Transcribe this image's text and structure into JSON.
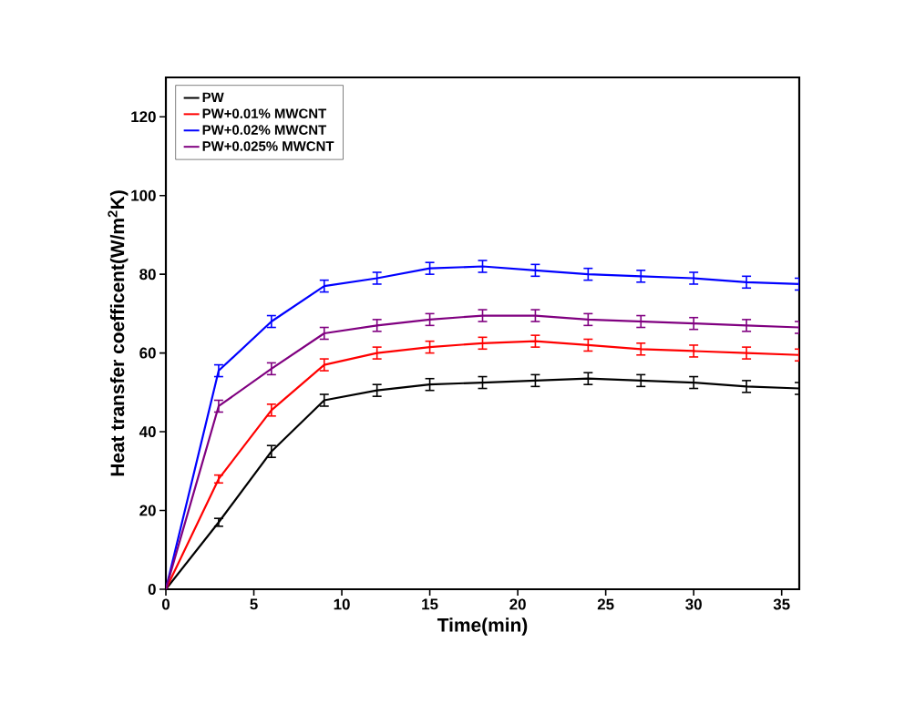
{
  "chart_data": {
    "type": "line",
    "xlabel": "Time(min)",
    "ylabel": "Heat transfer coefficent(W/m$^{2}$K)",
    "x": [
      0,
      3,
      6,
      9,
      12,
      15,
      18,
      21,
      24,
      27,
      30,
      33,
      36
    ],
    "series": [
      {
        "name": "PW",
        "color": "#000000",
        "values": [
          0,
          17,
          35,
          48,
          50.5,
          52,
          52.5,
          53,
          53.5,
          53,
          52.5,
          51.5,
          51
        ],
        "errors": [
          null,
          1,
          1.5,
          1.5,
          1.5,
          1.5,
          1.5,
          1.5,
          1.5,
          1.5,
          1.5,
          1.5,
          1.5
        ]
      },
      {
        "name": "PW+0.01% MWCNT",
        "color": "#ff0000",
        "values": [
          0,
          28,
          45.5,
          57,
          60,
          61.5,
          62.5,
          63,
          62,
          61,
          60.5,
          60,
          59.5
        ],
        "errors": [
          null,
          1,
          1.5,
          1.5,
          1.5,
          1.5,
          1.5,
          1.5,
          1.5,
          1.5,
          1.5,
          1.5,
          1.5
        ]
      },
      {
        "name": "PW+0.02% MWCNT",
        "color": "#0000ff",
        "values": [
          0,
          55.5,
          68,
          77,
          79,
          81.5,
          82,
          81,
          80,
          79.5,
          79,
          78,
          77.5
        ],
        "errors": [
          null,
          1.5,
          1.5,
          1.5,
          1.5,
          1.5,
          1.5,
          1.5,
          1.5,
          1.5,
          1.5,
          1.5,
          1.5
        ]
      },
      {
        "name": "PW+0.025% MWCNT",
        "color": "#800080",
        "values": [
          0,
          46.5,
          56,
          65,
          67,
          68.5,
          69.5,
          69.5,
          68.5,
          68,
          67.5,
          67,
          66.5
        ],
        "errors": [
          null,
          1.5,
          1.5,
          1.5,
          1.5,
          1.5,
          1.5,
          1.5,
          1.5,
          1.5,
          1.5,
          1.5,
          1.5
        ]
      }
    ],
    "xlim": [
      0,
      36
    ],
    "ylim": [
      0,
      130
    ],
    "xticks": [
      0,
      5,
      10,
      15,
      20,
      25,
      30,
      35
    ],
    "yticks": [
      0,
      20,
      40,
      60,
      80,
      100,
      120
    ],
    "legend": "top left",
    "grid": false,
    "marker": "none",
    "line_style": "solid"
  }
}
